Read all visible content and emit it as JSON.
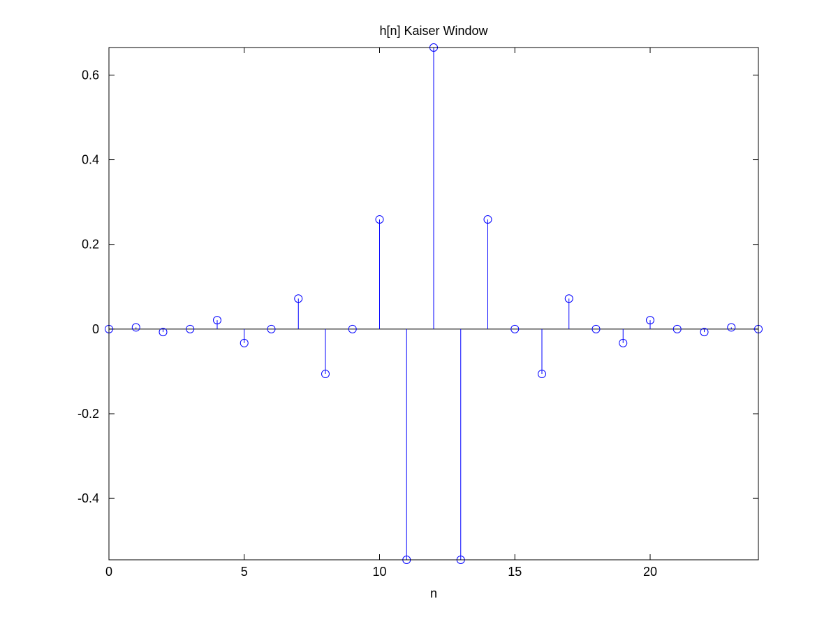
{
  "chart_data": {
    "type": "stem",
    "title": "h[n] Kaiser Window",
    "xlabel": "n",
    "ylabel": "",
    "xlim": [
      0,
      24
    ],
    "ylim": [
      -0.545,
      0.665
    ],
    "xticks": [
      0,
      5,
      10,
      15,
      20
    ],
    "yticks": [
      -0.4,
      -0.2,
      0,
      0.2,
      0.4,
      0.6
    ],
    "ytick_labels": [
      "-0.4",
      "-0.2",
      "0",
      "0.2",
      "0.4",
      "0.6"
    ],
    "xtick_labels": [
      "0",
      "5",
      "10",
      "15",
      "20"
    ],
    "grid": false,
    "colors": {
      "stem": "#0000ff",
      "baseline": "#000000",
      "axes": "#000000",
      "background": "#ffffff"
    },
    "series": [
      {
        "marker": "circle",
        "x": [
          0,
          1,
          2,
          3,
          4,
          5,
          6,
          7,
          8,
          9,
          10,
          11,
          12,
          13,
          14,
          15,
          16,
          17,
          18,
          19,
          20,
          21,
          22,
          23,
          24
        ],
        "y": [
          0,
          0.004,
          -0.007,
          0,
          0.021,
          -0.033,
          0,
          0.072,
          -0.106,
          0,
          0.259,
          -0.545,
          0.665,
          -0.545,
          0.259,
          0,
          -0.106,
          0.072,
          0,
          -0.033,
          0.021,
          0,
          -0.007,
          0.004,
          0
        ]
      }
    ]
  }
}
